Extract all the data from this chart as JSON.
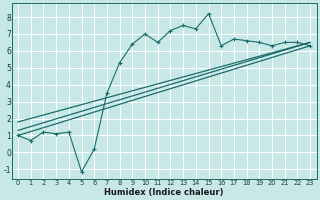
{
  "xlabel": "Humidex (Indice chaleur)",
  "xlim": [
    -0.5,
    23.5
  ],
  "ylim": [
    -1.6,
    8.8
  ],
  "xticks": [
    0,
    1,
    2,
    3,
    4,
    5,
    6,
    7,
    8,
    9,
    10,
    11,
    12,
    13,
    14,
    15,
    16,
    17,
    18,
    19,
    20,
    21,
    22,
    23
  ],
  "yticks": [
    -1,
    0,
    1,
    2,
    3,
    4,
    5,
    6,
    7,
    8
  ],
  "bg_color": "#c8e8e8",
  "line_color": "#1a6b6b",
  "grid_color": "#ffffff",
  "series1_x": [
    0,
    1,
    2,
    3,
    4,
    5,
    6,
    7,
    8,
    9,
    10,
    11,
    12,
    13,
    14,
    15,
    16,
    17,
    18,
    19,
    20,
    21,
    22,
    23
  ],
  "series1_y": [
    1.0,
    0.7,
    1.2,
    1.1,
    1.2,
    -1.15,
    0.2,
    3.5,
    5.3,
    6.4,
    7.0,
    6.5,
    7.2,
    7.5,
    7.3,
    8.2,
    6.3,
    6.7,
    6.6,
    6.5,
    6.3,
    6.5,
    6.5,
    6.3
  ],
  "series2_x": [
    0,
    23
  ],
  "series2_y": [
    1.0,
    6.3
  ],
  "series3_x": [
    0,
    23
  ],
  "series3_y": [
    1.3,
    6.5
  ],
  "series4_x": [
    0,
    23
  ],
  "series4_y": [
    1.8,
    6.5
  ]
}
